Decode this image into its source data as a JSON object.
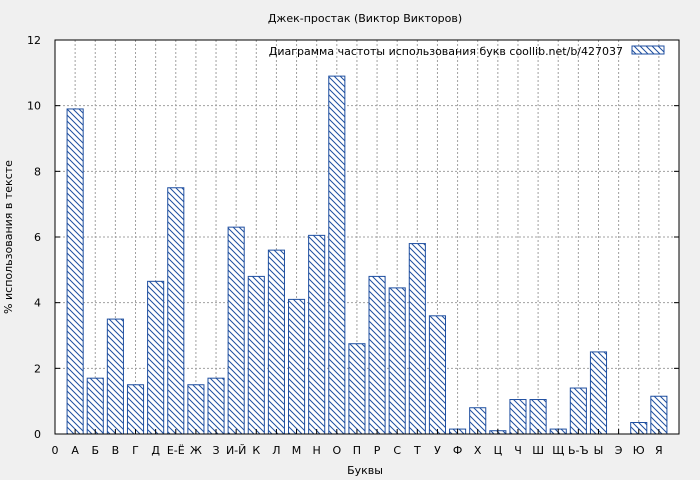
{
  "chart_data": {
    "type": "bar",
    "title": "Джек-простак (Виктор Викторов)",
    "xlabel": "Буквы",
    "ylabel": "% использования в тексте",
    "legend": {
      "label": "Диаграмма частоты использования букв  coollib.net/b/427037",
      "position": "top-right"
    },
    "ylim": [
      0,
      12
    ],
    "yticks": [
      0,
      2,
      4,
      6,
      8,
      10,
      12
    ],
    "grid": true,
    "categories": [
      "0",
      "А",
      "Б",
      "В",
      "Г",
      "Д",
      "Е-Ё",
      "Ж",
      "З",
      "И-Й",
      "К",
      "Л",
      "М",
      "Н",
      "О",
      "П",
      "Р",
      "С",
      "Т",
      "У",
      "Ф",
      "Х",
      "Ц",
      "Ч",
      "Ш",
      "Щ",
      "Ь-Ъ",
      "Ы",
      "Э",
      "Ю",
      "Я"
    ],
    "values": [
      null,
      9.9,
      1.7,
      3.5,
      1.5,
      4.65,
      7.5,
      1.5,
      1.7,
      6.3,
      4.8,
      5.6,
      4.1,
      6.05,
      10.9,
      2.75,
      4.8,
      4.45,
      5.8,
      3.6,
      0.15,
      0.8,
      0.1,
      1.05,
      1.05,
      0.15,
      1.4,
      2.5,
      0.0,
      0.35,
      1.15
    ],
    "colors": {
      "bar_stroke": "#1f4fa0",
      "hatch": "#1f4fa0",
      "grid": "#a0a0a0",
      "background": "#f0f0f0",
      "plot_bg": "#ffffff"
    }
  }
}
